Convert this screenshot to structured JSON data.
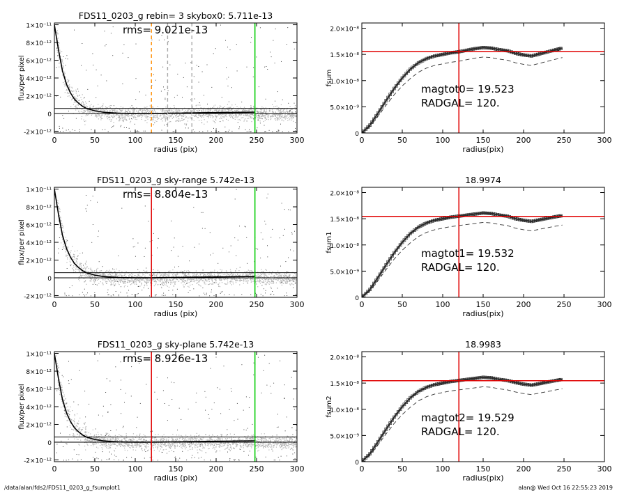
{
  "footer": {
    "left": "/data/alan/fds2/FDS11_0203_g_fsumplot1",
    "right": "alan@  Wed Oct 16 22:55:23 2019"
  },
  "chart_data": [
    {
      "type": "scatter",
      "title": "FDS11_0203_g rebin= 3    skybox0:  5.711e-13",
      "annotation": "rms= 9.021e-13",
      "xlabel": "radius (pix)",
      "ylabel": "flux/per pixel",
      "xlim": [
        0,
        300
      ],
      "ylim": [
        -2.2e-12,
        1.02e-11
      ],
      "xticks": [
        "0",
        "50",
        "100",
        "150",
        "200",
        "250",
        "300"
      ],
      "yticks": [
        "-2×10⁻¹²",
        "0",
        "2×10⁻¹²",
        "4×10⁻¹²",
        "6×10⁻¹²",
        "8×10⁻¹²",
        "1×10⁻¹¹"
      ],
      "profile_x": [
        0,
        5,
        10,
        15,
        20,
        25,
        30,
        35,
        40,
        50,
        60,
        70,
        80,
        90,
        100,
        120,
        140,
        160,
        180,
        200,
        220,
        248
      ],
      "profile_y": [
        1e-11,
        7.2e-12,
        4.8e-12,
        3.3e-12,
        2.3e-12,
        1.6e-12,
        1.15e-12,
        8e-13,
        5.6e-13,
        3e-13,
        1.5e-13,
        8e-14,
        3e-14,
        1e-14,
        0,
        0,
        2e-14,
        5e-14,
        8e-14,
        1e-13,
        1.2e-13,
        1.5e-13
      ],
      "hlines": [
        0,
        5.711e-13
      ],
      "vlines": [
        {
          "x": 120,
          "color": "#ff8c00",
          "style": "dashed"
        },
        {
          "x": 140,
          "color": "#aaaaaa",
          "style": "dashed"
        },
        {
          "x": 170,
          "color": "#aaaaaa",
          "style": "dashed"
        },
        {
          "x": 248,
          "color": "#00cc00",
          "style": "solid"
        }
      ]
    },
    {
      "type": "line",
      "title": "",
      "annotation": [
        "magtot0=  19.523",
        "RADGAL=    120."
      ],
      "xlabel": "radius(pix)",
      "ylabel": "fsum",
      "xlim": [
        0,
        300
      ],
      "ylim": [
        0,
        2.1e-08
      ],
      "xticks": [
        "0",
        "50",
        "100",
        "150",
        "200",
        "250",
        "300"
      ],
      "yticks": [
        "0",
        "5.0×10⁻⁹",
        "1.0×10⁻⁸",
        "1.5×10⁻⁸",
        "2.0×10⁻⁸"
      ],
      "x": [
        0,
        10,
        20,
        30,
        40,
        50,
        60,
        70,
        80,
        90,
        100,
        110,
        120,
        130,
        140,
        150,
        160,
        170,
        180,
        190,
        200,
        210,
        220,
        230,
        240,
        248
      ],
      "y": [
        0,
        1.5e-09,
        3.8e-09,
        6.2e-09,
        8.5e-09,
        1.05e-08,
        1.22e-08,
        1.34e-08,
        1.42e-08,
        1.47e-08,
        1.5e-08,
        1.53e-08,
        1.55e-08,
        1.58e-08,
        1.61e-08,
        1.63e-08,
        1.62e-08,
        1.59e-08,
        1.57e-08,
        1.52e-08,
        1.49e-08,
        1.47e-08,
        1.51e-08,
        1.55e-08,
        1.59e-08,
        1.62e-08
      ],
      "dashed_offset": -1.8e-09,
      "hline": 1.555e-08,
      "vline": 120
    },
    {
      "type": "scatter",
      "title": "FDS11_0203_g sky-range  5.742e-13",
      "annotation": "rms= 8.804e-13",
      "xlabel": "radius (pix)",
      "ylabel": "flux/per pixel",
      "xlim": [
        0,
        300
      ],
      "ylim": [
        -2.2e-12,
        1.02e-11
      ],
      "xticks": [
        "0",
        "50",
        "100",
        "150",
        "200",
        "250",
        "300"
      ],
      "yticks": [
        "-2×10⁻¹²",
        "0",
        "2×10⁻¹²",
        "4×10⁻¹²",
        "6×10⁻¹²",
        "8×10⁻¹²",
        "1×10⁻¹¹"
      ],
      "profile_x": [
        0,
        5,
        10,
        15,
        20,
        25,
        30,
        35,
        40,
        50,
        60,
        70,
        80,
        90,
        100,
        120,
        140,
        160,
        180,
        200,
        220,
        248
      ],
      "profile_y": [
        1e-11,
        7.2e-12,
        4.8e-12,
        3.3e-12,
        2.3e-12,
        1.6e-12,
        1.15e-12,
        8e-13,
        5.6e-13,
        3e-13,
        1.5e-13,
        8e-14,
        3e-14,
        1e-14,
        0,
        0,
        2e-14,
        5e-14,
        8e-14,
        1e-13,
        1.2e-13,
        1.5e-13
      ],
      "hlines": [
        0,
        5.742e-13
      ],
      "vlines": [
        {
          "x": 120,
          "color": "#e00000",
          "style": "solid"
        },
        {
          "x": 248,
          "color": "#00cc00",
          "style": "solid"
        }
      ]
    },
    {
      "type": "line",
      "title": "18.9974",
      "annotation": [
        "magtot1=  19.532",
        "RADGAL=    120."
      ],
      "xlabel": "radius(pix)",
      "ylabel": "fsum1",
      "xlim": [
        0,
        300
      ],
      "ylim": [
        0,
        2.1e-08
      ],
      "xticks": [
        "0",
        "50",
        "100",
        "150",
        "200",
        "250",
        "300"
      ],
      "yticks": [
        "0",
        "5.0×10⁻⁹",
        "1.0×10⁻⁸",
        "1.5×10⁻⁸",
        "2.0×10⁻⁸"
      ],
      "x": [
        0,
        10,
        20,
        30,
        40,
        50,
        60,
        70,
        80,
        90,
        100,
        110,
        120,
        130,
        140,
        150,
        160,
        170,
        180,
        190,
        200,
        210,
        220,
        230,
        240,
        248
      ],
      "y": [
        0,
        1.5e-09,
        3.8e-09,
        6.2e-09,
        8.5e-09,
        1.05e-08,
        1.22e-08,
        1.34e-08,
        1.42e-08,
        1.47e-08,
        1.5e-08,
        1.53e-08,
        1.55e-08,
        1.57e-08,
        1.59e-08,
        1.61e-08,
        1.6e-08,
        1.57e-08,
        1.55e-08,
        1.5e-08,
        1.47e-08,
        1.45e-08,
        1.48e-08,
        1.51e-08,
        1.54e-08,
        1.56e-08
      ],
      "dashed_offset": -1.8e-09,
      "hline": 1.545e-08,
      "vline": 120
    },
    {
      "type": "scatter",
      "title": "FDS11_0203_g sky-plane  5.742e-13",
      "annotation": "rms= 8.926e-13",
      "xlabel": "radius (pix)",
      "ylabel": "flux/per pixel",
      "xlim": [
        0,
        300
      ],
      "ylim": [
        -2.2e-12,
        1.02e-11
      ],
      "xticks": [
        "0",
        "50",
        "100",
        "150",
        "200",
        "250",
        "300"
      ],
      "yticks": [
        "-2×10⁻¹²",
        "0",
        "2×10⁻¹²",
        "4×10⁻¹²",
        "6×10⁻¹²",
        "8×10⁻¹²",
        "1×10⁻¹¹"
      ],
      "profile_x": [
        0,
        5,
        10,
        15,
        20,
        25,
        30,
        35,
        40,
        50,
        60,
        70,
        80,
        90,
        100,
        120,
        140,
        160,
        180,
        200,
        220,
        248
      ],
      "profile_y": [
        1e-11,
        7.2e-12,
        4.8e-12,
        3.3e-12,
        2.3e-12,
        1.6e-12,
        1.15e-12,
        8e-13,
        5.6e-13,
        3e-13,
        1.5e-13,
        8e-14,
        3e-14,
        1e-14,
        0,
        0,
        2e-14,
        5e-14,
        8e-14,
        1e-13,
        1.2e-13,
        1.5e-13
      ],
      "hlines": [
        0,
        5.742e-13
      ],
      "vlines": [
        {
          "x": 120,
          "color": "#e00000",
          "style": "solid"
        },
        {
          "x": 248,
          "color": "#00cc00",
          "style": "solid"
        }
      ]
    },
    {
      "type": "line",
      "title": "18.9983",
      "annotation": [
        "magtot2=  19.529",
        "RADGAL=    120."
      ],
      "xlabel": "radius(pix)",
      "ylabel": "fsum2",
      "xlim": [
        0,
        300
      ],
      "ylim": [
        0,
        2.1e-08
      ],
      "xticks": [
        "0",
        "50",
        "100",
        "150",
        "200",
        "250",
        "300"
      ],
      "yticks": [
        "0",
        "5.0×10⁻⁹",
        "1.0×10⁻⁸",
        "1.5×10⁻⁸",
        "2.0×10⁻⁸"
      ],
      "x": [
        0,
        10,
        20,
        30,
        40,
        50,
        60,
        70,
        80,
        90,
        100,
        110,
        120,
        130,
        140,
        150,
        160,
        170,
        180,
        190,
        200,
        210,
        220,
        230,
        240,
        248
      ],
      "y": [
        0,
        1.5e-09,
        3.8e-09,
        6.2e-09,
        8.5e-09,
        1.05e-08,
        1.22e-08,
        1.34e-08,
        1.42e-08,
        1.47e-08,
        1.5e-08,
        1.53e-08,
        1.55e-08,
        1.57e-08,
        1.59e-08,
        1.61e-08,
        1.6e-08,
        1.57e-08,
        1.55e-08,
        1.51e-08,
        1.48e-08,
        1.46e-08,
        1.49e-08,
        1.52e-08,
        1.55e-08,
        1.57e-08
      ],
      "dashed_offset": -1.8e-09,
      "hline": 1.545e-08,
      "vline": 120
    }
  ]
}
